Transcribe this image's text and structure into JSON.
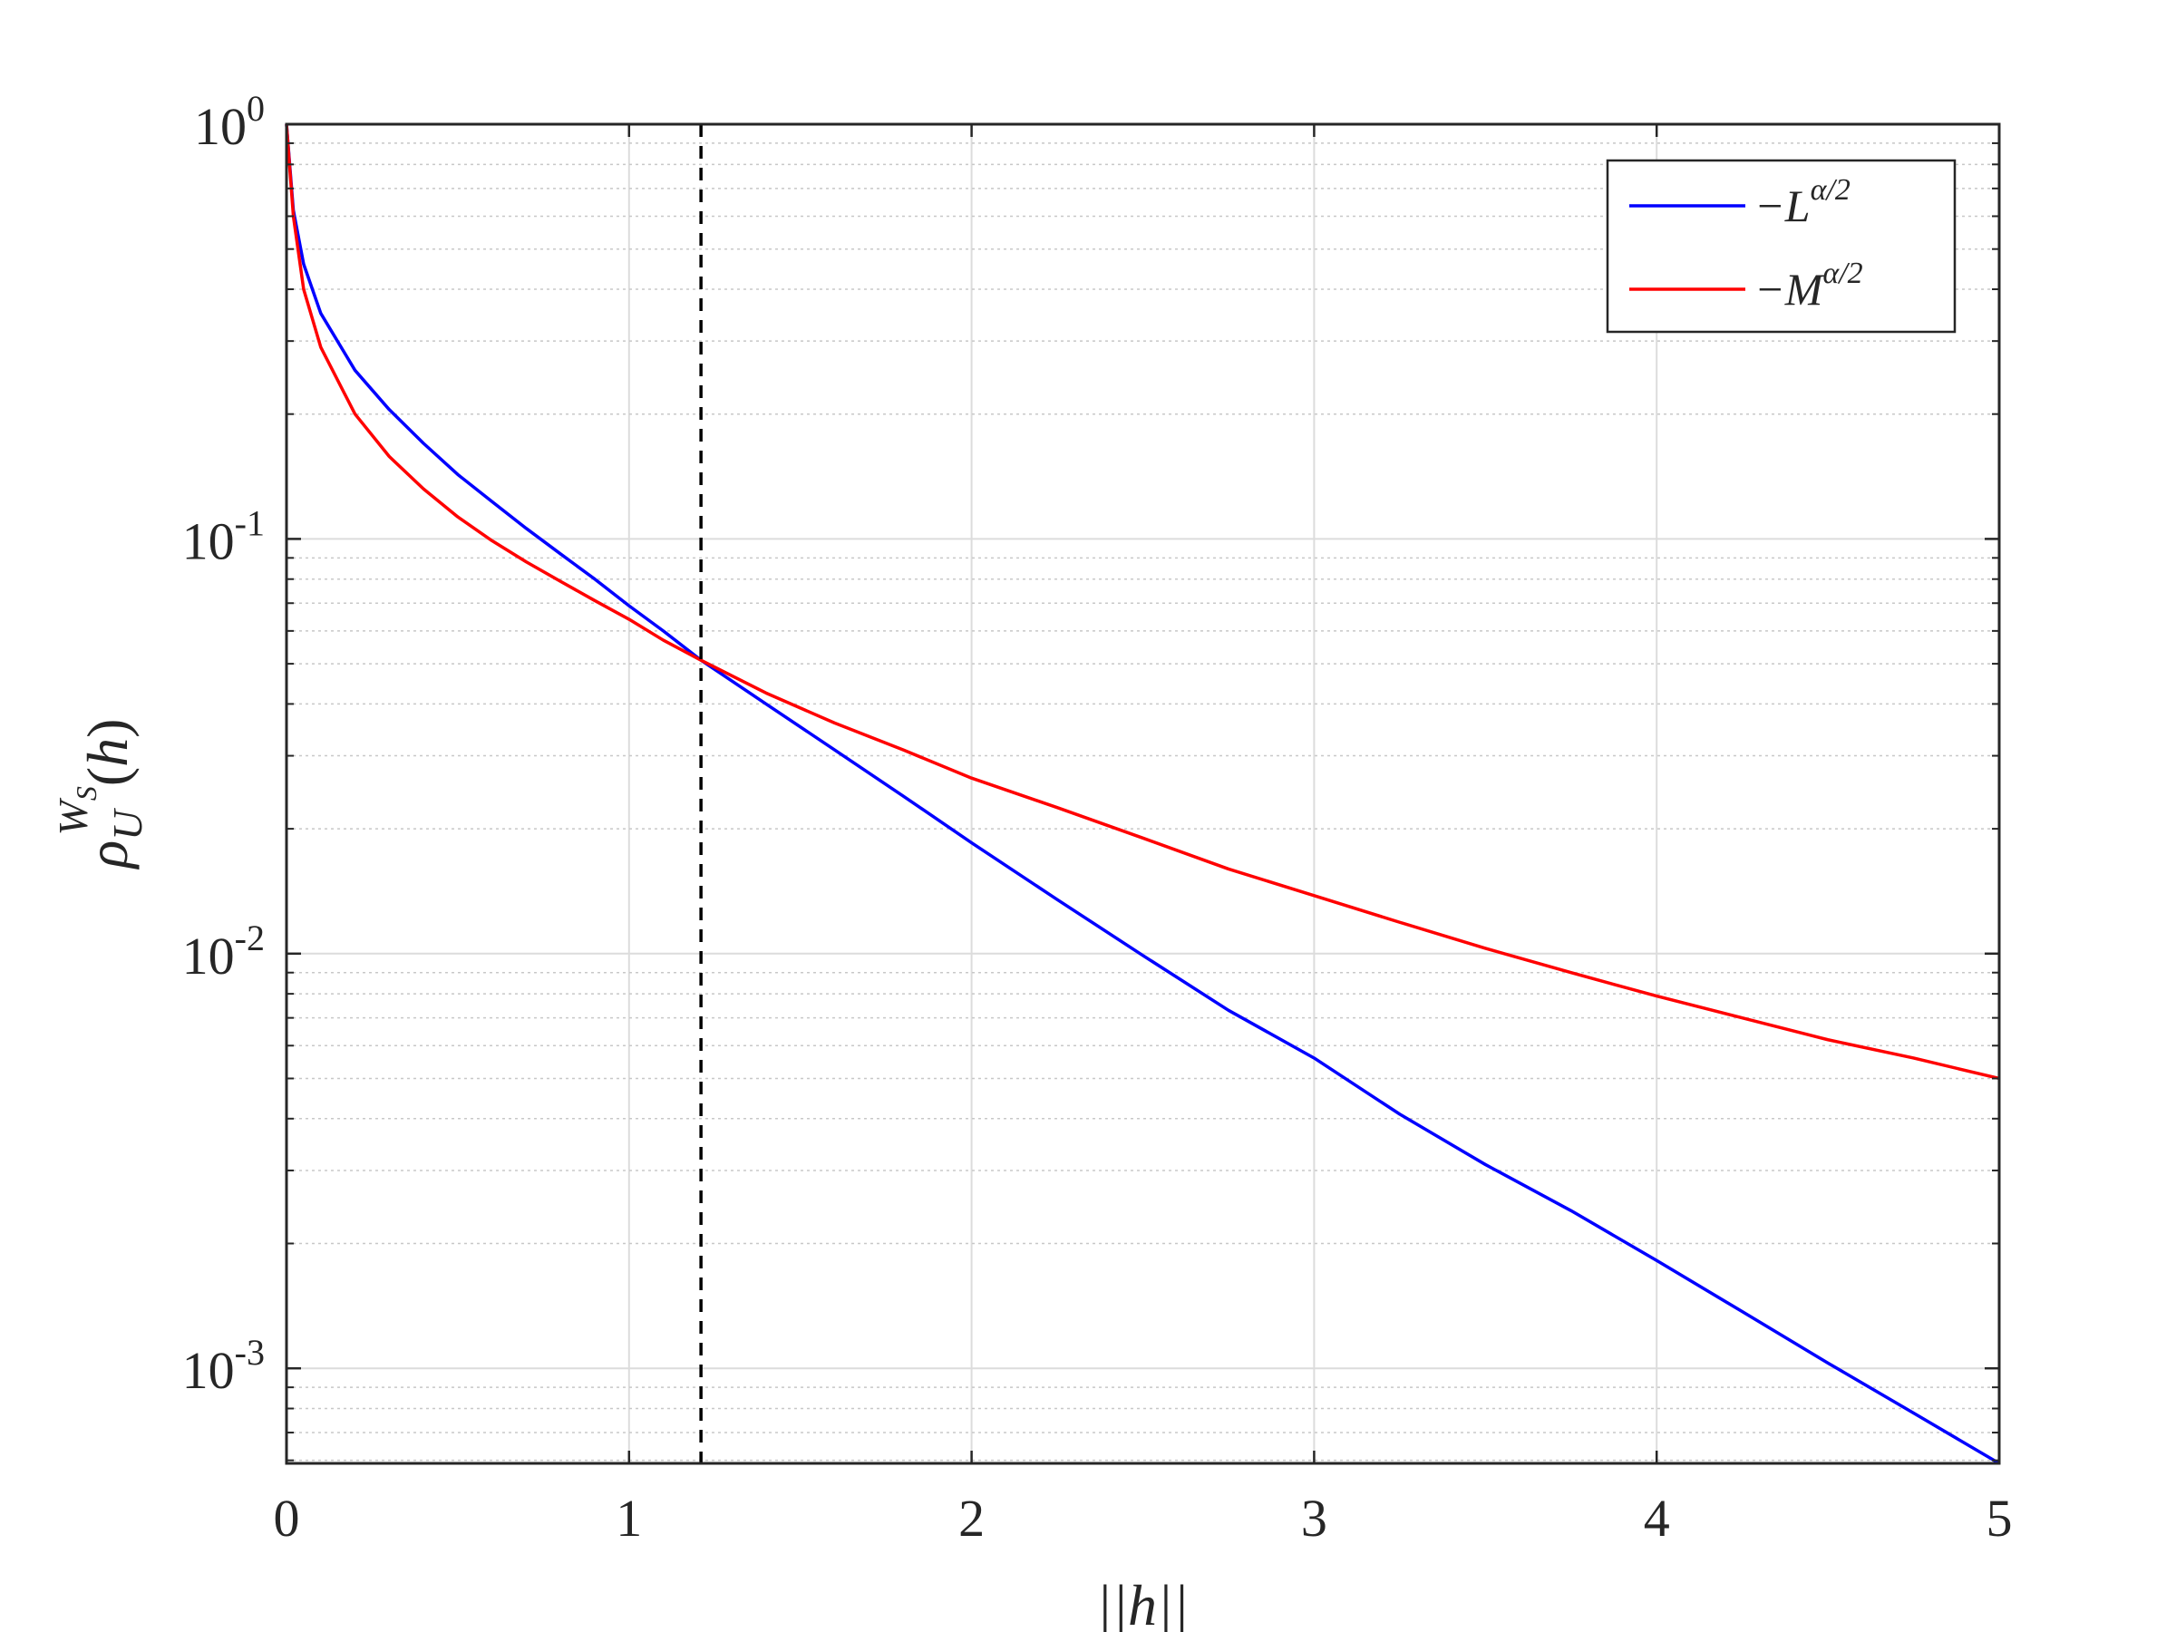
{
  "chart_data": {
    "type": "line",
    "xlabel": "||h||",
    "ylabel": "ρ_U^{W_S}(h)",
    "xscale": "linear",
    "yscale": "log",
    "xlim": [
      0,
      5
    ],
    "ylim": [
      0.00059,
      1
    ],
    "x_ticks": [
      {
        "value": 0,
        "label": "0"
      },
      {
        "value": 1,
        "label": "1"
      },
      {
        "value": 2,
        "label": "2"
      },
      {
        "value": 3,
        "label": "3"
      },
      {
        "value": 4,
        "label": "4"
      },
      {
        "value": 5,
        "label": "5"
      }
    ],
    "y_ticks": [
      {
        "value": 1,
        "base": "10",
        "exp": "0"
      },
      {
        "value": 0.1,
        "base": "10",
        "exp": "-1"
      },
      {
        "value": 0.01,
        "base": "10",
        "exp": "-2"
      },
      {
        "value": 0.001,
        "base": "10",
        "exp": "-3"
      }
    ],
    "grid": true,
    "minor_grid_y": true,
    "legend_position": "top-right",
    "vertical_reference_line": {
      "x": 1.21,
      "style": "dashed",
      "color": "#000000"
    },
    "series": [
      {
        "name": "−L^{α/2}",
        "legend_base": "−L",
        "legend_exp": "α/2",
        "color": "#0000ff",
        "points": [
          [
            0,
            1.0
          ],
          [
            0.02,
            0.62
          ],
          [
            0.05,
            0.46
          ],
          [
            0.1,
            0.35
          ],
          [
            0.2,
            0.255
          ],
          [
            0.3,
            0.205
          ],
          [
            0.4,
            0.17
          ],
          [
            0.5,
            0.143
          ],
          [
            0.6,
            0.123
          ],
          [
            0.7,
            0.106
          ],
          [
            0.8,
            0.092
          ],
          [
            0.9,
            0.08
          ],
          [
            1.0,
            0.069
          ],
          [
            1.1,
            0.06
          ],
          [
            1.21,
            0.051
          ],
          [
            1.4,
            0.04
          ],
          [
            1.6,
            0.031
          ],
          [
            1.8,
            0.024
          ],
          [
            2.0,
            0.0185
          ],
          [
            2.25,
            0.0135
          ],
          [
            2.5,
            0.0099
          ],
          [
            2.75,
            0.0073
          ],
          [
            3.0,
            0.0056
          ],
          [
            3.25,
            0.0041
          ],
          [
            3.5,
            0.0031
          ],
          [
            3.75,
            0.0024
          ],
          [
            4.0,
            0.00182
          ],
          [
            4.25,
            0.00137
          ],
          [
            4.5,
            0.00103
          ],
          [
            4.75,
            0.00078
          ],
          [
            5.0,
            0.00059
          ]
        ]
      },
      {
        "name": "−M^{α/2}",
        "legend_base": "−M",
        "legend_exp": "α/2",
        "color": "#ff0000",
        "points": [
          [
            0,
            1.0
          ],
          [
            0.02,
            0.6
          ],
          [
            0.05,
            0.4
          ],
          [
            0.1,
            0.29
          ],
          [
            0.2,
            0.2
          ],
          [
            0.3,
            0.158
          ],
          [
            0.4,
            0.132
          ],
          [
            0.5,
            0.113
          ],
          [
            0.6,
            0.099
          ],
          [
            0.7,
            0.088
          ],
          [
            0.8,
            0.079
          ],
          [
            0.9,
            0.071
          ],
          [
            1.0,
            0.064
          ],
          [
            1.1,
            0.057
          ],
          [
            1.21,
            0.051
          ],
          [
            1.4,
            0.0425
          ],
          [
            1.6,
            0.036
          ],
          [
            1.8,
            0.031
          ],
          [
            2.0,
            0.0265
          ],
          [
            2.25,
            0.0225
          ],
          [
            2.5,
            0.019
          ],
          [
            2.75,
            0.016
          ],
          [
            3.0,
            0.0138
          ],
          [
            3.25,
            0.0119
          ],
          [
            3.5,
            0.0103
          ],
          [
            3.75,
            0.009
          ],
          [
            4.0,
            0.0079
          ],
          [
            4.25,
            0.007
          ],
          [
            4.5,
            0.0062
          ],
          [
            4.75,
            0.0056
          ],
          [
            5.0,
            0.005
          ]
        ]
      }
    ]
  }
}
